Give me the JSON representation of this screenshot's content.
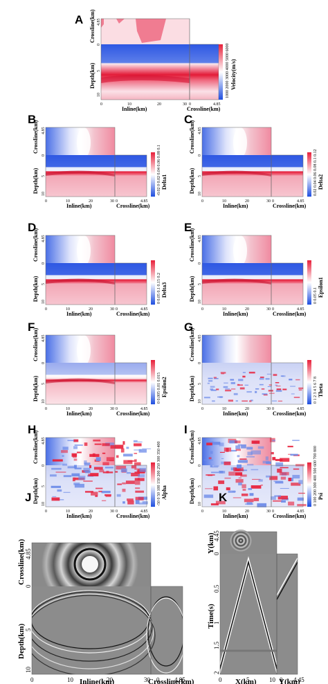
{
  "panels": {
    "A": {
      "label": "A",
      "colorbar_label": "Velocity(m/s)",
      "colorbar_ticks": [
        "1000",
        "2000",
        "3000",
        "4000",
        "5000",
        "6000"
      ]
    },
    "B": {
      "label": "B",
      "colorbar_label": "Delta1",
      "colorbar_ticks": [
        "-0.02",
        "0",
        "0.02",
        "0.04",
        "0.06",
        "0.08",
        "0.1"
      ]
    },
    "C": {
      "label": "C",
      "colorbar_label": "Delta2",
      "colorbar_ticks": [
        "0.02",
        "0.04",
        "0.06",
        "0.08",
        "0.1",
        "0.12"
      ]
    },
    "D": {
      "label": "D",
      "colorbar_label": "Delta3",
      "colorbar_ticks": [
        "0",
        "0.05",
        "0.1",
        "0.15",
        "0.2"
      ]
    },
    "E": {
      "label": "E",
      "colorbar_label": "Epsilon1",
      "colorbar_ticks": [
        "0",
        "0.05",
        "0.1"
      ]
    },
    "F": {
      "label": "F",
      "colorbar_label": "Epsilon2",
      "colorbar_ticks": [
        "0",
        "0.005",
        "0.01",
        "0.015"
      ]
    },
    "G": {
      "label": "G",
      "colorbar_label": "Theta",
      "colorbar_ticks": [
        "0",
        "1",
        "2",
        "3",
        "4",
        "5",
        "6",
        "7",
        "8"
      ]
    },
    "H": {
      "label": "H",
      "colorbar_label": "Alpha",
      "colorbar_ticks": [
        "-50",
        "0",
        "50",
        "100",
        "150",
        "200",
        "250",
        "300",
        "350",
        "400"
      ]
    },
    "I": {
      "label": "I",
      "colorbar_label": "Psi",
      "colorbar_ticks": [
        "0",
        "100",
        "200",
        "300",
        "400",
        "500",
        "600",
        "700",
        "800"
      ]
    },
    "J": {
      "label": "J"
    },
    "K": {
      "label": "K"
    }
  },
  "axes": {
    "crossline": "Crossline(km)",
    "depth": "Depth(km)",
    "inline": "Inline(km)",
    "time": "Time(s)",
    "y": "Y(km)",
    "x": "X(km)",
    "yk": "Y(km)"
  },
  "ticks": {
    "zero": "0",
    "cross_max": "4.85",
    "depth_mid": "5",
    "depth_max": "10",
    "inline_10": "10",
    "inline_20": "20",
    "inline_30": "30",
    "y_max": "4.45",
    "t_05": "0.5",
    "t_1": "1",
    "t_15": "1.5",
    "t_2": "2",
    "x_5": "5",
    "x_10": "10"
  }
}
